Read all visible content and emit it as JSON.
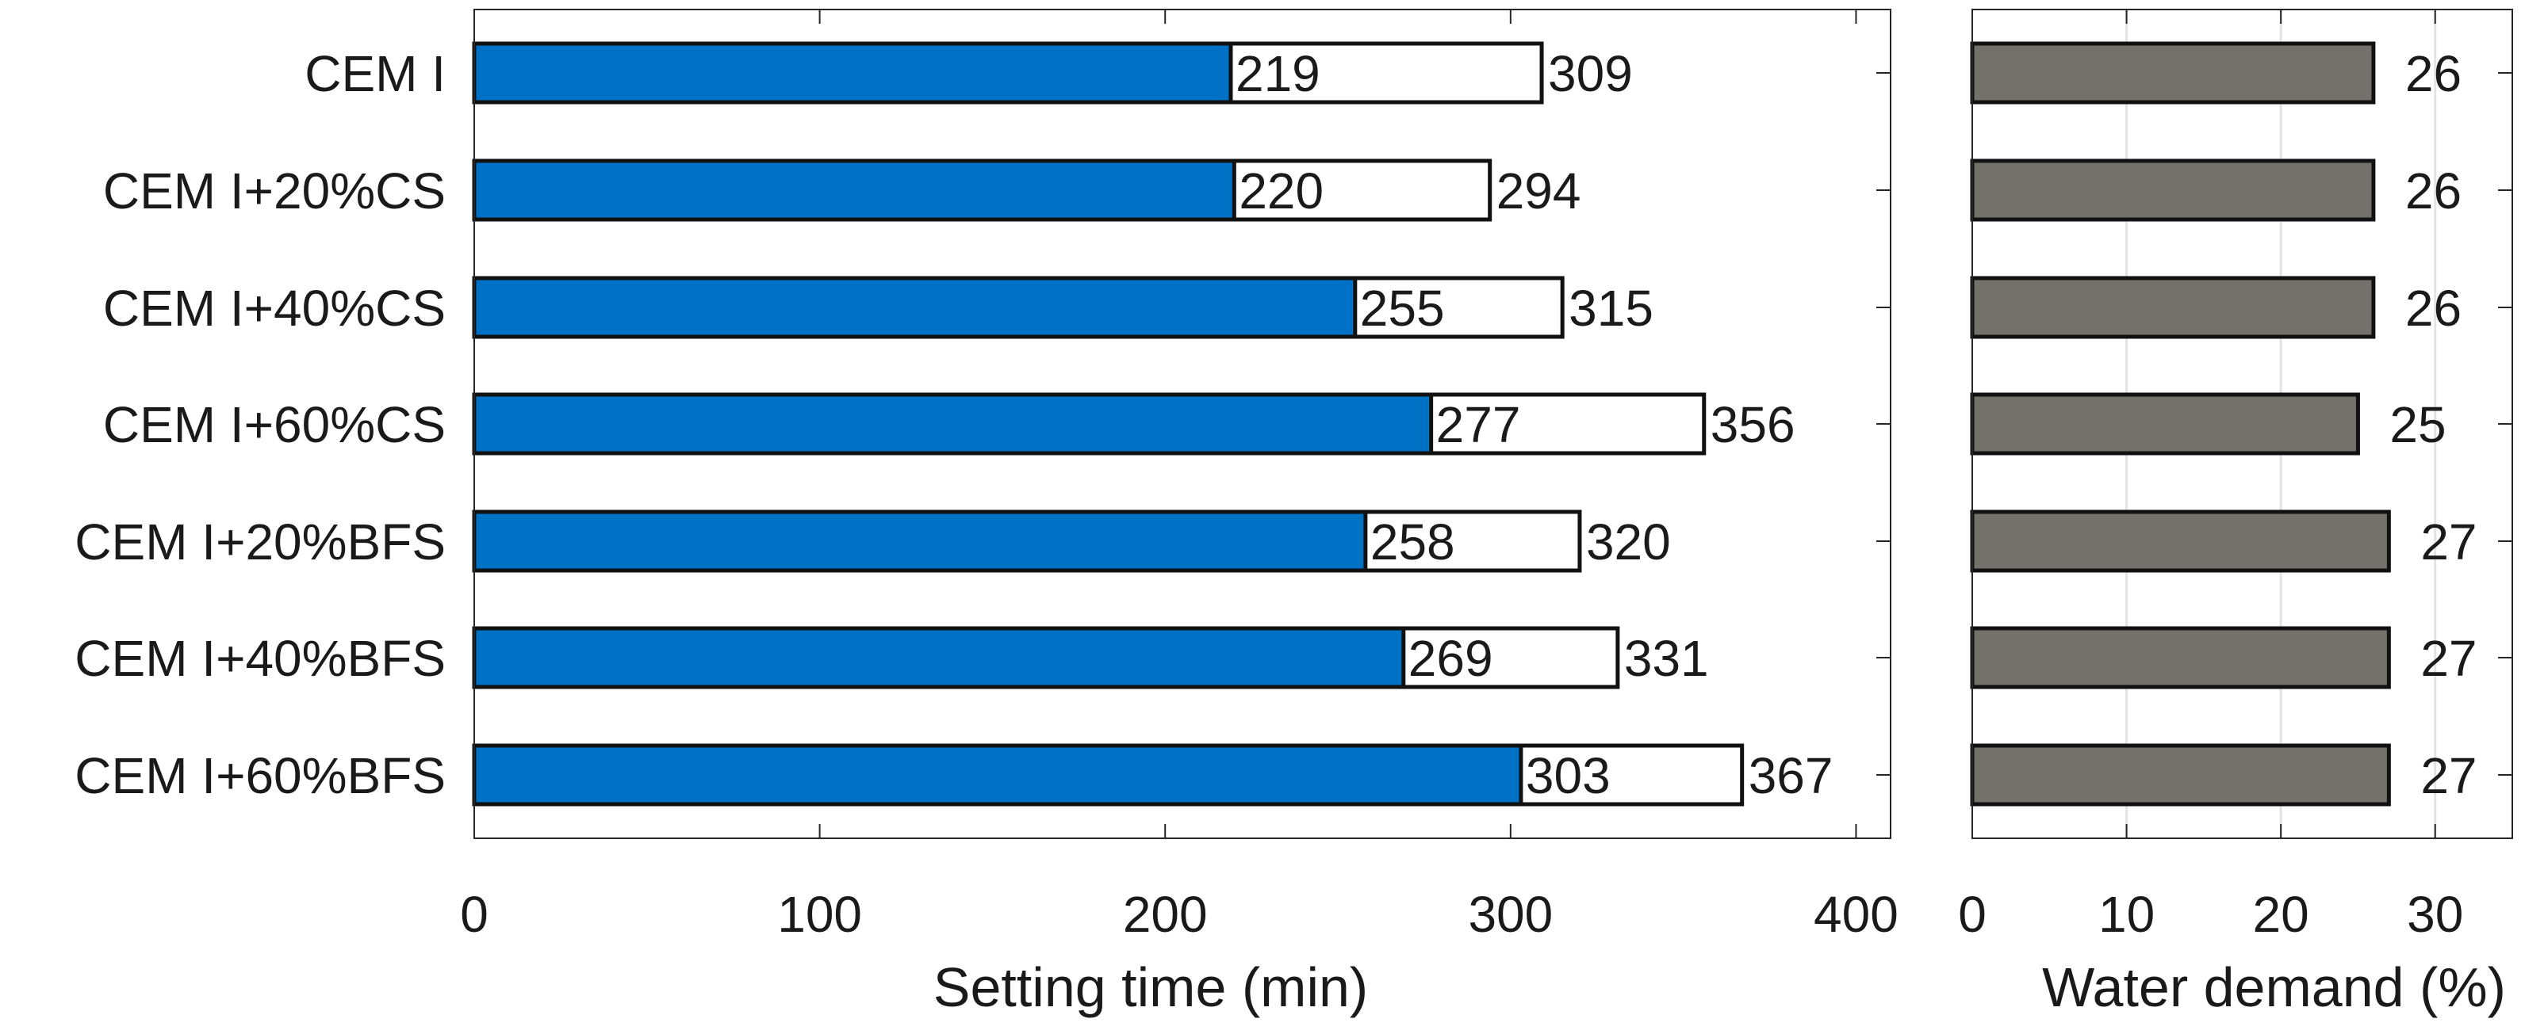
{
  "chart_data": [
    {
      "type": "bar",
      "orientation": "horizontal",
      "stacked": "overlay",
      "categories": [
        "CEM I",
        "CEM I+20%CS",
        "CEM I+40%CS",
        "CEM I+60%CS",
        "CEM I+20%BFS",
        "CEM I+40%BFS",
        "CEM I+60%BFS"
      ],
      "series": [
        {
          "values": [
            219,
            220,
            255,
            277,
            258,
            269,
            303
          ],
          "color": "#0072c6"
        },
        {
          "values": [
            309,
            294,
            315,
            356,
            320,
            331,
            367
          ],
          "color": "#ffffff"
        }
      ],
      "xlabel": "Setting time (min)",
      "xlim": [
        0,
        410
      ],
      "xticks": [
        0,
        100,
        200,
        300,
        400
      ],
      "grid": false,
      "data_labels": true
    },
    {
      "type": "bar",
      "orientation": "horizontal",
      "categories": [
        "CEM I",
        "CEM I+20%CS",
        "CEM I+40%CS",
        "CEM I+60%CS",
        "CEM I+20%BFS",
        "CEM I+40%BFS",
        "CEM I+60%BFS"
      ],
      "series": [
        {
          "values": [
            26,
            26,
            26,
            25,
            27,
            27,
            27
          ],
          "color": "#72726a"
        }
      ],
      "xlabel": "Water demand (%)",
      "xlim": [
        0,
        35
      ],
      "xticks": [
        0,
        10,
        20,
        30
      ],
      "grid": true,
      "data_labels": true
    }
  ]
}
